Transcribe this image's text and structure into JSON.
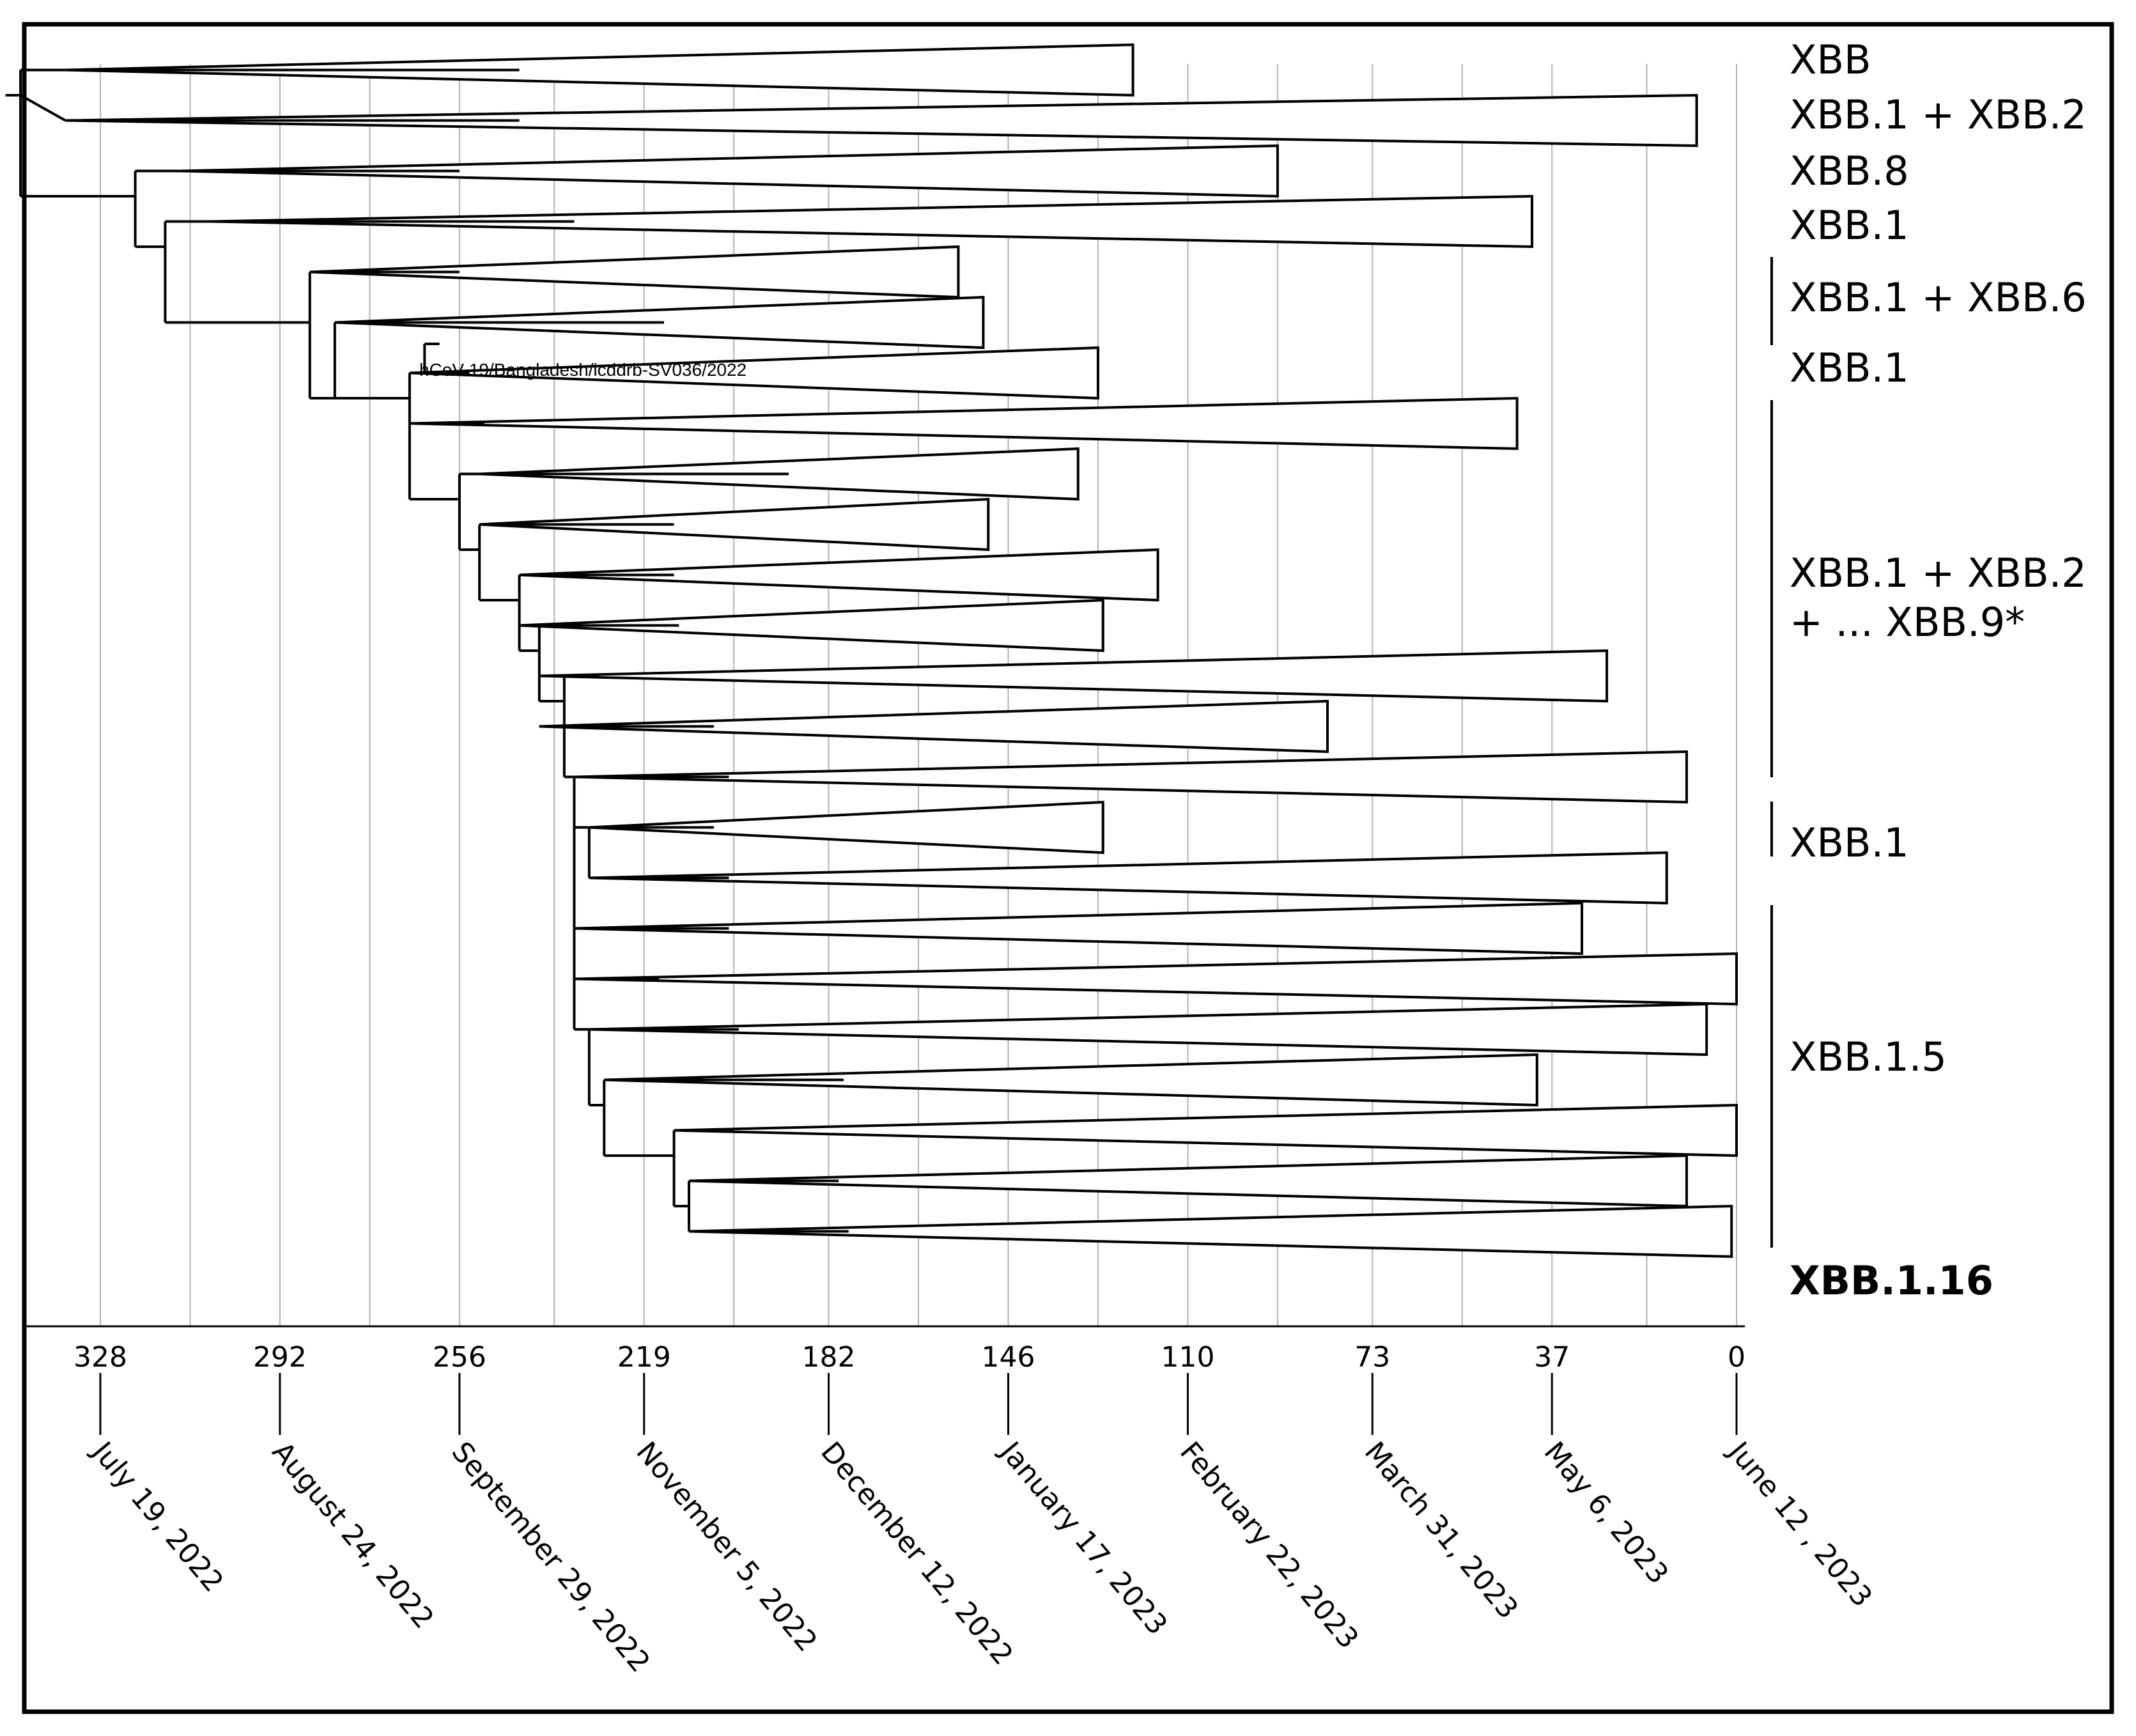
{
  "chart_data": {
    "type": "phylogenetic-time-tree",
    "x_axis": {
      "unit": "days before June 12, 2023",
      "range_days": [
        344,
        0
      ],
      "ticks": [
        {
          "days": 328,
          "label": "328",
          "date": "July 19, 2022"
        },
        {
          "days": 292,
          "label": "292",
          "date": "August 24, 2022"
        },
        {
          "days": 256,
          "label": "256",
          "date": "September 29, 2022"
        },
        {
          "days": 219,
          "label": "219",
          "date": "November 5, 2022"
        },
        {
          "days": 182,
          "label": "182",
          "date": "December 12, 2022"
        },
        {
          "days": 146,
          "label": "146",
          "date": "January 17, 2023"
        },
        {
          "days": 110,
          "label": "110",
          "date": "February 22, 2023"
        },
        {
          "days": 73,
          "label": "73",
          "date": "March 31, 2023"
        },
        {
          "days": 37,
          "label": "37",
          "date": "May 6, 2023"
        },
        {
          "days": 0,
          "label": "0",
          "date": "June 12 , 2023"
        }
      ],
      "gridlines_days": [
        328,
        310,
        292,
        274,
        256,
        237,
        219,
        201,
        182,
        164,
        146,
        128,
        110,
        92,
        73,
        55,
        37,
        18,
        0
      ]
    },
    "leaf_label": "hCoV-19/Bangladesh/icddrb-SV036/2022",
    "clade_groups": [
      {
        "label": "XBB",
        "bold": false
      },
      {
        "label": "XBB.1 + XBB.2",
        "bold": false
      },
      {
        "label": "XBB.8",
        "bold": false
      },
      {
        "label": "XBB.1",
        "bold": false
      },
      {
        "label": "XBB.1 + XBB.6",
        "bold": false
      },
      {
        "label": "XBB.1",
        "bold": false
      },
      {
        "label": "XBB.1 + XBB.2",
        "label_line2": "+ ... XBB.9*",
        "bold": false
      },
      {
        "label": "XBB.1",
        "bold": false
      },
      {
        "label": "XBB.1.5",
        "bold": false
      },
      {
        "label": "XBB.1.16",
        "bold": true
      }
    ],
    "collapsed_clades_days": [
      {
        "root": 335,
        "apex": 244,
        "tip": 121
      },
      {
        "root": 335,
        "apex": 244,
        "tip": 8
      },
      {
        "root": 312,
        "apex": 256,
        "tip": 92
      },
      {
        "root": 306,
        "apex": 233,
        "tip": 41
      },
      {
        "root": 286,
        "apex": 256,
        "tip": 156
      },
      {
        "root": 281,
        "apex": 215,
        "tip": 151
      },
      {
        "root": 266,
        "apex": 254,
        "tip": 128
      },
      {
        "root": 266,
        "apex": 251,
        "tip": 44
      },
      {
        "root": 252,
        "apex": 190,
        "tip": 132
      },
      {
        "root": 252,
        "apex": 213,
        "tip": 150
      },
      {
        "root": 244,
        "apex": 213,
        "tip": 116
      },
      {
        "root": 244,
        "apex": 212,
        "tip": 127
      },
      {
        "root": 240,
        "apex": 228,
        "tip": 26
      },
      {
        "root": 240,
        "apex": 205,
        "tip": 82
      },
      {
        "root": 233,
        "apex": 202,
        "tip": 10
      },
      {
        "root": 230,
        "apex": 205,
        "tip": 127
      },
      {
        "root": 230,
        "apex": 202,
        "tip": 14
      },
      {
        "root": 233,
        "apex": 202,
        "tip": 31
      },
      {
        "root": 233,
        "apex": 216,
        "tip": 0
      },
      {
        "root": 230,
        "apex": 200,
        "tip": 6
      },
      {
        "root": 227,
        "apex": 179,
        "tip": 40
      },
      {
        "root": 213,
        "apex": 201,
        "tip": 0
      },
      {
        "root": 210,
        "apex": 180,
        "tip": 10
      },
      {
        "root": 210,
        "apex": 178,
        "tip": 1
      }
    ]
  }
}
